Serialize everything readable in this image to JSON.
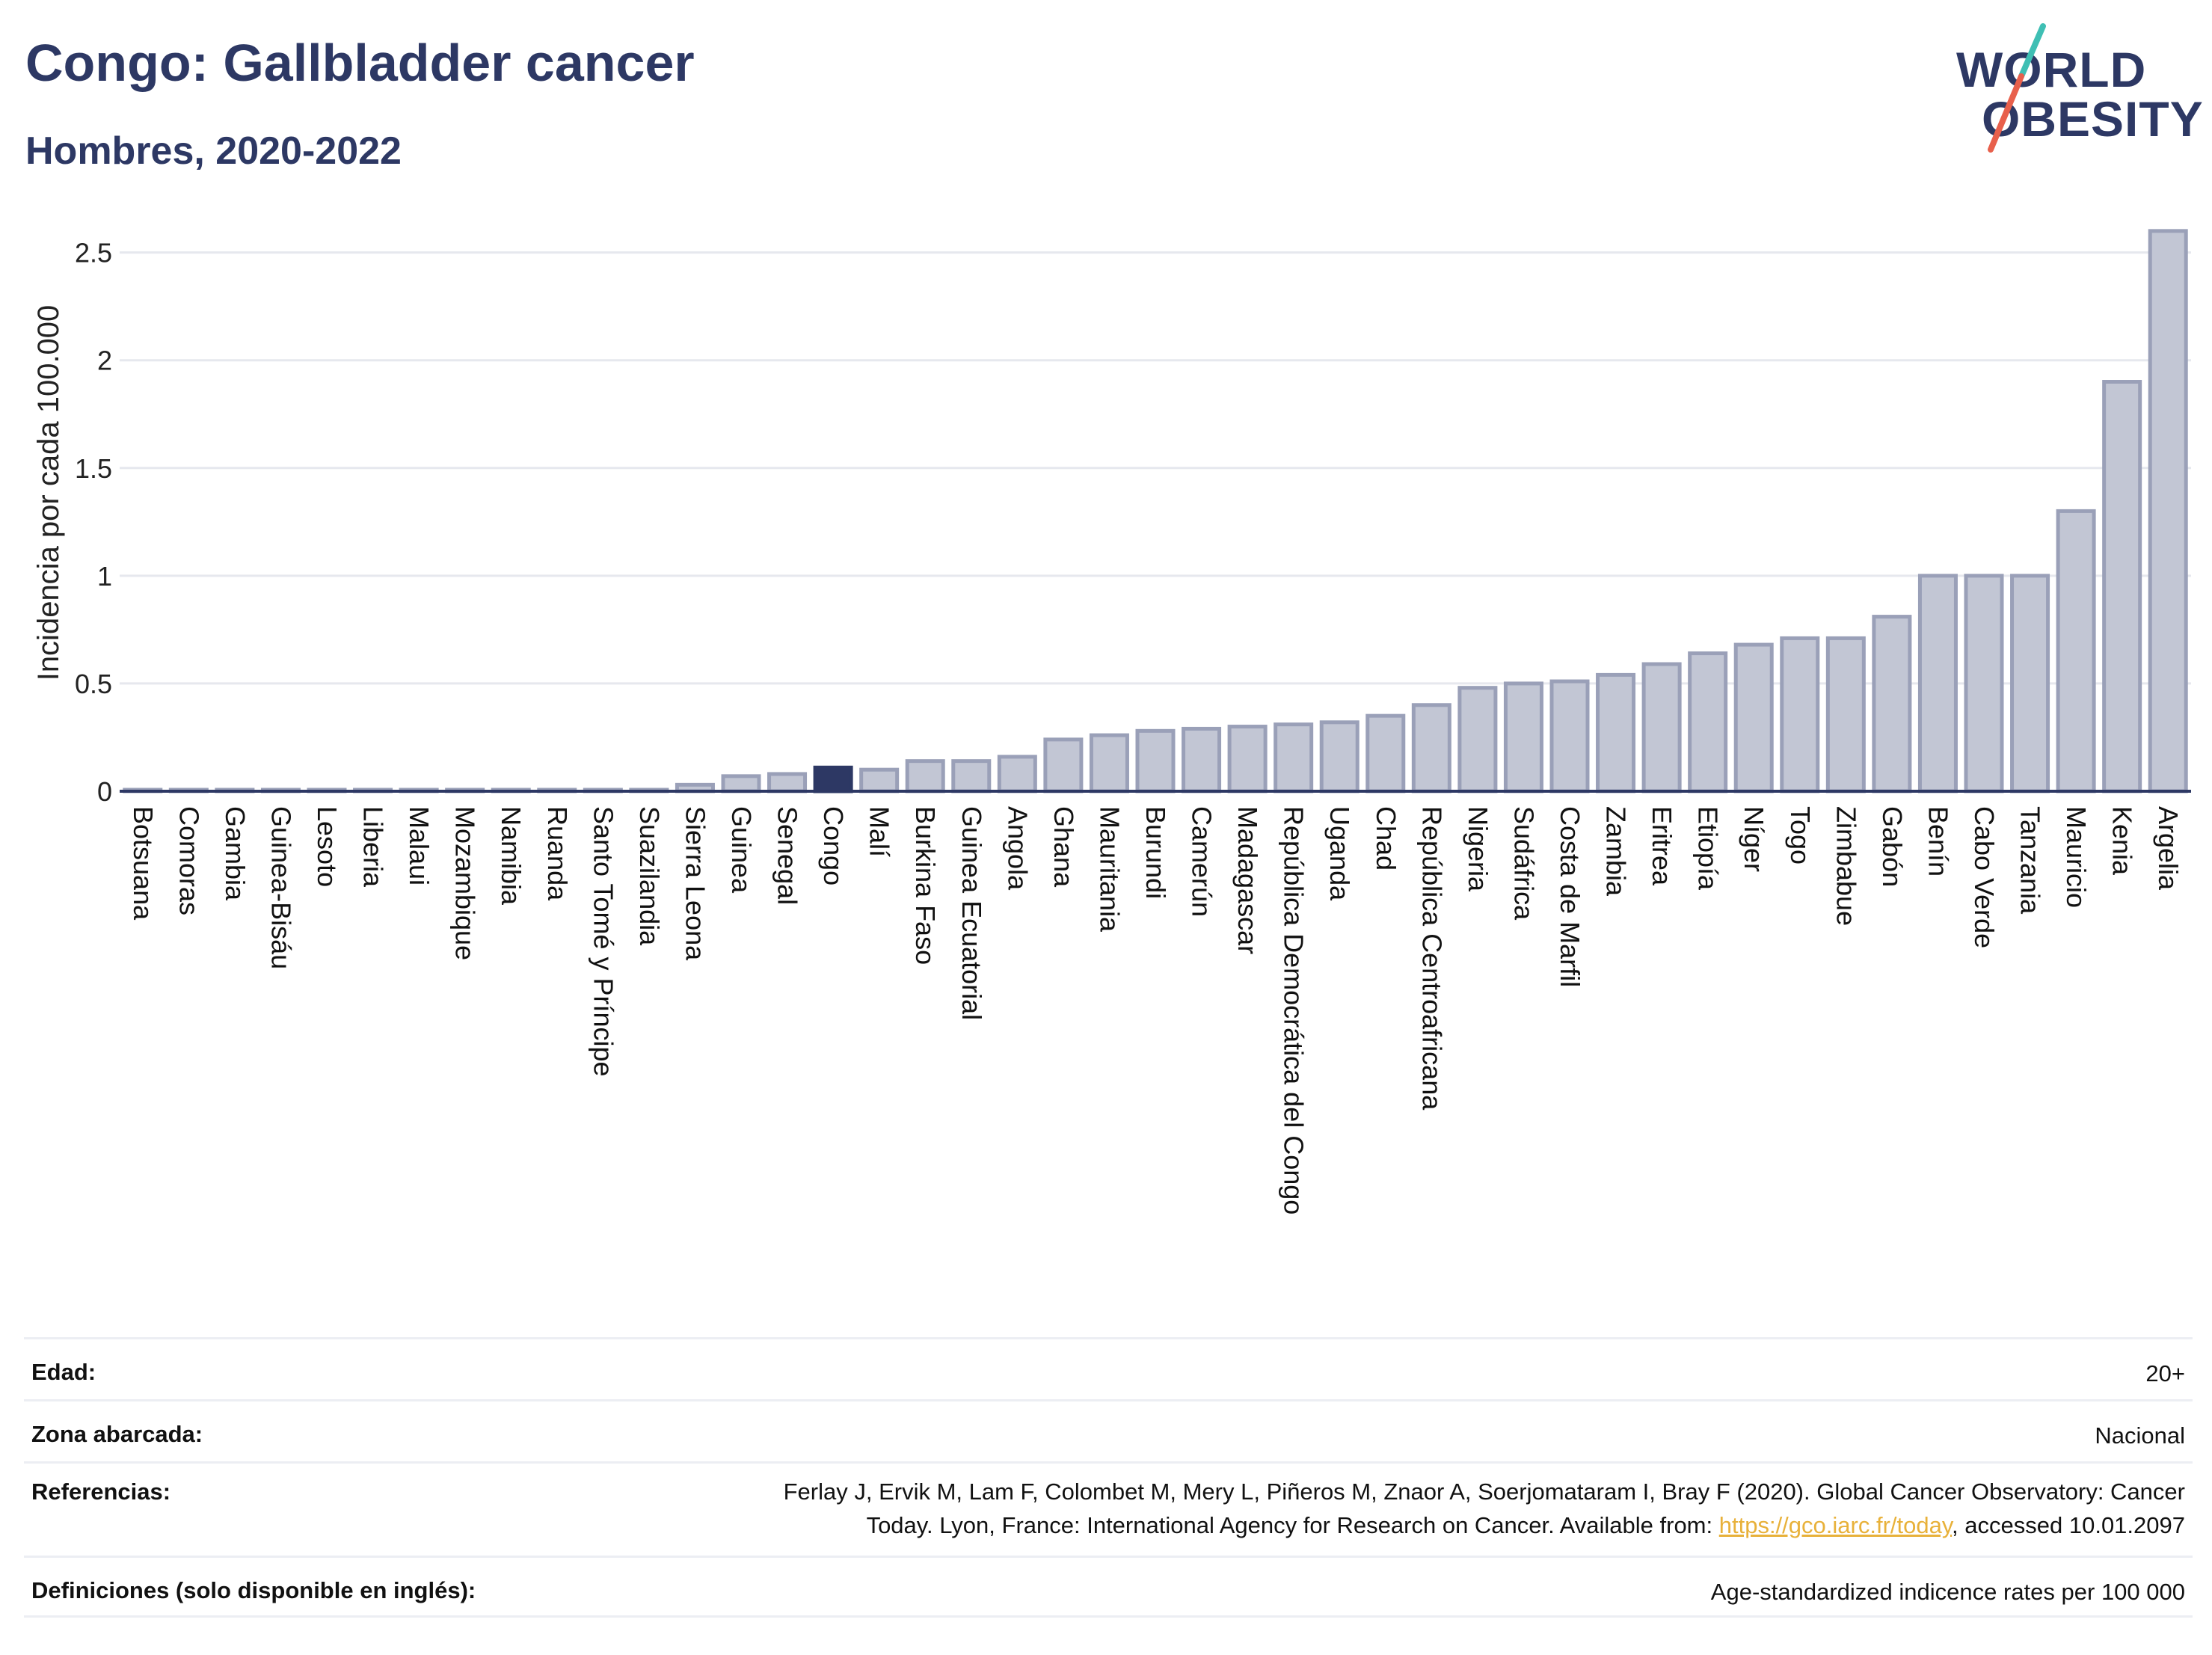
{
  "header": {
    "title": "Congo: Gallbladder cancer",
    "subtitle": "Hombres, 2020-2022"
  },
  "logo": {
    "line1": "WORLD",
    "line2": "OBESITY",
    "slash_colors": [
      "#3fbfb4",
      "#e8604c"
    ]
  },
  "chart_data": {
    "type": "bar",
    "ylabel": "Incidencia por cada 100.000",
    "xlabel": "",
    "ylim": [
      0,
      2.7
    ],
    "yticks": [
      0,
      0.5,
      1,
      1.5,
      2,
      2.5
    ],
    "ytick_labels": [
      "0",
      "0.5",
      "1",
      "1.5",
      "2",
      "2.5"
    ],
    "grid": true,
    "highlight": "Congo",
    "colors": {
      "bar_fill": "#c2c6d4",
      "bar_stroke": "#9aa0b8",
      "highlight_fill": "#2d3864",
      "axis": "#2d3864",
      "grid": "#e6e8ee"
    },
    "categories": [
      "Botsuana",
      "Comoras",
      "Gambia",
      "Guinea-Bisáu",
      "Lesoto",
      "Liberia",
      "Malaui",
      "Mozambique",
      "Namibia",
      "Ruanda",
      "Santo Tomé y Príncipe",
      "Suazilandia",
      "Sierra Leona",
      "Guinea",
      "Senegal",
      "Congo",
      "Malí",
      "Burkina Faso",
      "Guinea Ecuatorial",
      "Angola",
      "Ghana",
      "Mauritania",
      "Burundi",
      "Camerún",
      "Madagascar",
      "República Democrática del Congo",
      "Uganda",
      "Chad",
      "República Centroafricana",
      "Nigeria",
      "Sudáfrica",
      "Costa de Marfil",
      "Zambia",
      "Eritrea",
      "Etiopía",
      "Níger",
      "Togo",
      "Zimbabue",
      "Gabón",
      "Benín",
      "Cabo Verde",
      "Tanzania",
      "Mauricio",
      "Kenia",
      "Argelia"
    ],
    "values": [
      0.0,
      0.0,
      0.0,
      0.0,
      0.0,
      0.0,
      0.0,
      0.0,
      0.0,
      0.0,
      0.0,
      0.0,
      0.03,
      0.07,
      0.08,
      0.11,
      0.1,
      0.14,
      0.14,
      0.16,
      0.24,
      0.26,
      0.28,
      0.29,
      0.3,
      0.31,
      0.32,
      0.35,
      0.4,
      0.48,
      0.5,
      0.51,
      0.54,
      0.59,
      0.64,
      0.68,
      0.71,
      0.71,
      0.81,
      1.0,
      1.0,
      1.0,
      1.3,
      1.9,
      2.6
    ]
  },
  "meta": [
    {
      "label": "Edad:",
      "value": "20+"
    },
    {
      "label": "Zona abarcada:",
      "value": "Nacional"
    },
    {
      "label": "Referencias:",
      "value_line1": "Ferlay J, Ervik M, Lam F, Colombet M, Mery L, Piñeros M, Znaor A, Soerjomataram I, Bray F (2020). Global Cancer Observatory: Cancer",
      "value_line2_pre": "Today. Lyon, France: International Agency for Research on Cancer. Available from: ",
      "link": "https://gco.iarc.fr/today",
      "value_line2_post": ", accessed 10.01.2097"
    },
    {
      "label": "Definiciones (solo disponible en inglés):",
      "value": "Age-standardized indicence rates per 100 000"
    }
  ]
}
